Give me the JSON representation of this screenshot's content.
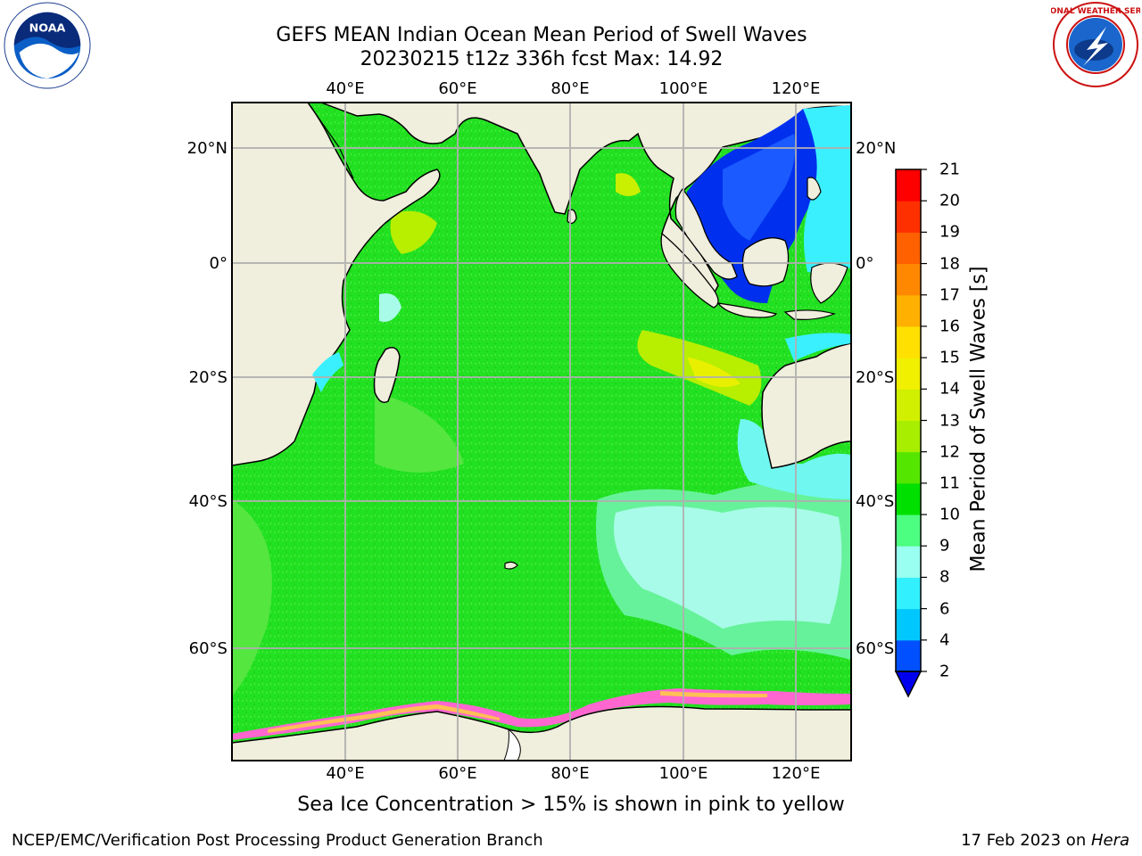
{
  "header": {
    "title": "GEFS MEAN Indian Ocean Mean Period of Swell Waves",
    "subtitle": "20230215 t12z 336h fcst   Max: 14.92"
  },
  "logos": {
    "left": "noaa-logo",
    "right": "nws-logo",
    "left_text": "NOAA",
    "right_text": "NATIONAL WEATHER SERVICE"
  },
  "map": {
    "lon_range": [
      20,
      130
    ],
    "lat_range": [
      -77,
      28
    ],
    "lon_ticks": [
      "40°E",
      "60°E",
      "80°E",
      "100°E",
      "120°E"
    ],
    "lat_ticks": [
      "20°N",
      "0°",
      "20°S",
      "40°S",
      "60°S"
    ],
    "grid": true
  },
  "colorbar": {
    "label": "Mean Period of Swell Waves [s]",
    "ticks": [
      "2",
      "4",
      "6",
      "8",
      "9",
      "10",
      "11",
      "12",
      "13",
      "14",
      "15",
      "16",
      "17",
      "18",
      "19",
      "20",
      "21"
    ],
    "colors": [
      "#0050ff",
      "#00c8ff",
      "#33f0ff",
      "#99fff0",
      "#4dff80",
      "#00e000",
      "#55e600",
      "#a8ee00",
      "#d0f000",
      "#f0f000",
      "#ffe000",
      "#ffb000",
      "#ff8800",
      "#ff6000",
      "#ff3000",
      "#ff0000"
    ],
    "under_color": "#0000ee"
  },
  "note": "Sea Ice Concentration > 15% is shown in pink to yellow",
  "footer": {
    "left": "NCEP/EMC/Verification Post Processing Product Generation Branch",
    "date": "17 Feb 2023 on ",
    "host": "Hera"
  }
}
